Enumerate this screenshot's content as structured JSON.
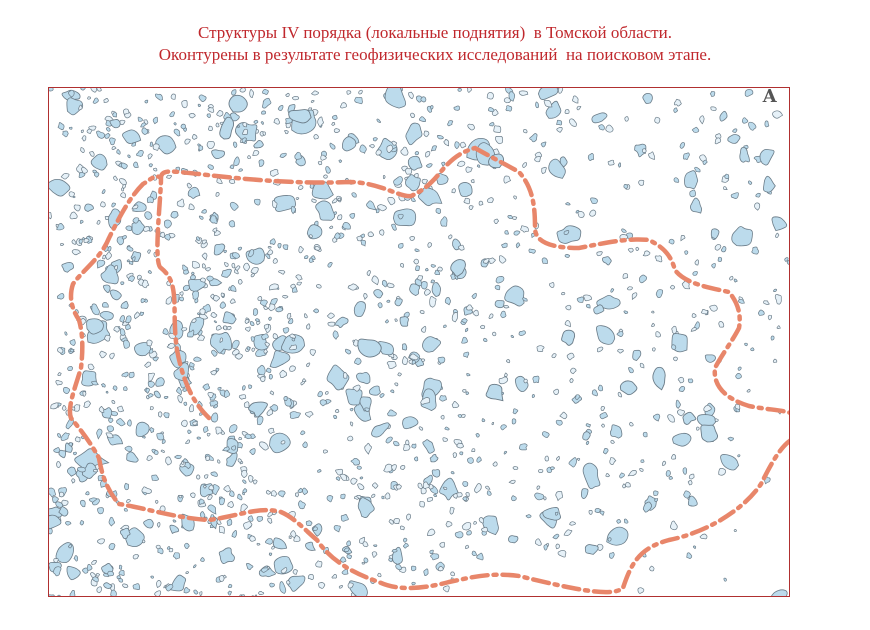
{
  "title": {
    "line1": "Структуры IV порядка (локальные поднятия)  в Томской области.",
    "line2": "Оконтурены в результате геофизических исследований  на поисковом этапе."
  },
  "map": {
    "letter": "А",
    "colors": {
      "structure_fill": "#bcdbec",
      "structure_stroke": "#6b7c88",
      "boundary": "#e8866a",
      "frame": "#b03030"
    }
  }
}
